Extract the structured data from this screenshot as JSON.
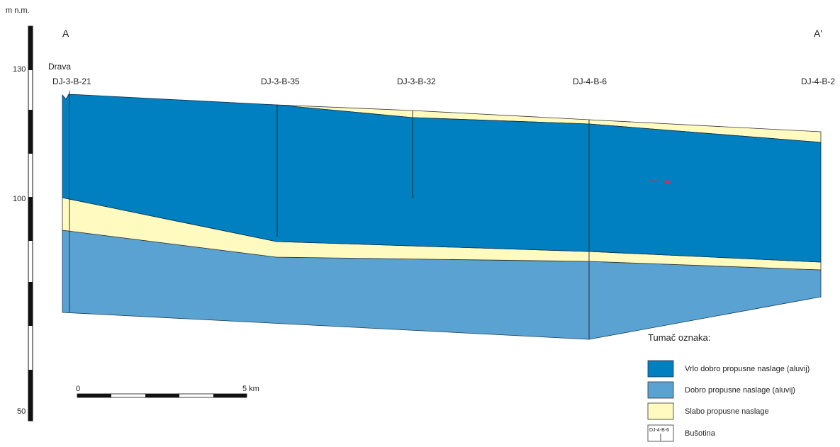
{
  "axis": {
    "unit_label": "m n.m.",
    "ticks": [
      "130",
      "100",
      "50"
    ]
  },
  "section": {
    "start_label": "A",
    "end_label": "A'",
    "river_label": "Drava"
  },
  "boreholes": [
    "DJ-3-B-21",
    "DJ-3-B-35",
    "DJ-3-B-32",
    "DJ-4-B-6",
    "DJ-4-B-2"
  ],
  "scale_bar": {
    "start_label": "0",
    "end_label": "5 km"
  },
  "legend": {
    "title": "Tumač oznaka:",
    "items": [
      {
        "label": "Vrlo dobro propusne naslage (aluvij)",
        "color": "#0080c0"
      },
      {
        "label": "Dobro propusne naslage (aluvij)",
        "color": "#5aa2d2"
      },
      {
        "label": "Slabo propusne naslage",
        "color": "#fffac0"
      },
      {
        "label": "Bušotina",
        "symbol_text": "DJ-4-B-6"
      }
    ]
  },
  "colors": {
    "very_permeable": "#0080c0",
    "permeable": "#5aa2d2",
    "low_permeable": "#fffac0",
    "arrow": "#d03050"
  }
}
